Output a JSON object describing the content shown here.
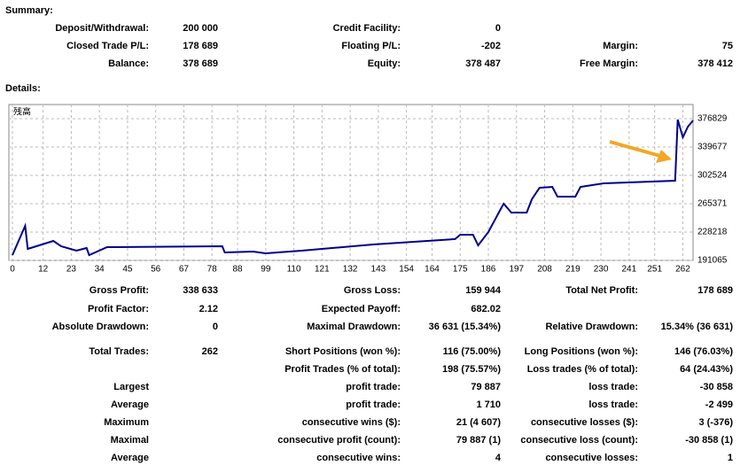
{
  "summary": {
    "title": "Summary:",
    "rows": [
      [
        "Deposit/Withdrawal:",
        "200 000",
        "Credit Facility:",
        "0",
        null,
        null
      ],
      [
        "Closed Trade P/L:",
        "178 689",
        "Floating P/L:",
        "-202",
        "Margin:",
        "75"
      ],
      [
        "Balance:",
        "378 689",
        "Equity:",
        "378 487",
        "Free Margin:",
        "378 412"
      ]
    ]
  },
  "details": {
    "title": "Details:",
    "rows": [
      [
        "Gross Profit:",
        "338 633",
        "Gross Loss:",
        "159 944",
        "Total Net Profit:",
        "178 689"
      ],
      [
        "Profit Factor:",
        "2.12",
        "Expected Payoff:",
        "682.02",
        null,
        null
      ],
      [
        "Absolute Drawdown:",
        "0",
        "Maximal Drawdown:",
        "36 631 (15.34%)",
        "Relative Drawdown:",
        "15.34% (36 631)"
      ],
      [
        "Total Trades:",
        "262",
        "Short Positions (won %):",
        "116 (75.00%)",
        "Long Positions (won %):",
        "146 (76.03%)"
      ],
      [
        null,
        null,
        "Profit Trades (% of total):",
        "198 (75.57%)",
        "Loss trades (% of total):",
        "64 (24.43%)"
      ],
      [
        "Largest",
        null,
        "profit trade:",
        "79 887",
        "loss trade:",
        "-30 858"
      ],
      [
        "Average",
        null,
        "profit trade:",
        "1 710",
        "loss trade:",
        "-2 499"
      ],
      [
        "Maximum",
        null,
        "consecutive wins ($):",
        "21 (4 607)",
        "consecutive losses ($):",
        "3 (-376)"
      ],
      [
        "Maximal",
        null,
        "consecutive profit (count):",
        "79 887 (1)",
        "consecutive loss (count):",
        "-30 858 (1)"
      ],
      [
        "Average",
        null,
        "consecutive wins:",
        "4",
        "consecutive losses:",
        "1"
      ]
    ]
  },
  "chart_data": {
    "type": "line",
    "x": [
      0,
      5,
      6,
      16,
      19,
      25,
      29,
      30,
      37,
      82,
      83,
      94,
      99,
      113,
      141,
      173,
      175,
      180,
      182,
      186,
      191,
      192,
      195,
      201,
      203,
      206,
      211,
      213,
      220,
      222,
      231,
      259,
      260,
      262,
      264,
      266
    ],
    "series": [
      {
        "name": "残高",
        "color": "#00008b",
        "values": [
          198000,
          236300,
          206200,
          216600,
          209600,
          203800,
          207300,
          198000,
          208500,
          209600,
          201500,
          202700,
          200400,
          203800,
          212000,
          219000,
          224700,
          224700,
          210800,
          228200,
          259600,
          265400,
          253800,
          253800,
          271200,
          286300,
          287400,
          274700,
          274700,
          287400,
          292100,
          295600,
          375700,
          352400,
          366400,
          374500
        ]
      }
    ],
    "xlim": [
      0,
      266
    ],
    "xticks": [
      0,
      12,
      23,
      34,
      45,
      56,
      67,
      78,
      88,
      99,
      110,
      121,
      132,
      143,
      154,
      164,
      175,
      186,
      197,
      208,
      219,
      230,
      241,
      251,
      262
    ],
    "ylim": [
      191065,
      395400
    ],
    "yticks": [
      191065,
      228218,
      265371,
      302524,
      339677,
      376829
    ],
    "grid": true
  }
}
